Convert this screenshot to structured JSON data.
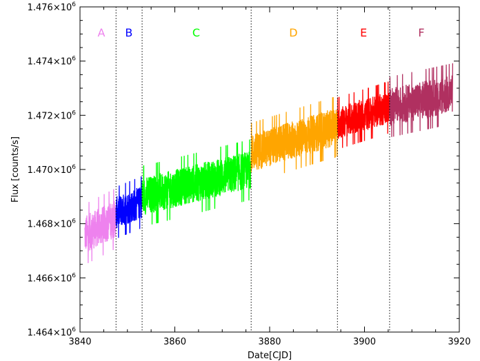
{
  "chart_data": {
    "type": "line",
    "title": "",
    "xlabel": "Date[CJD]",
    "ylabel": "Flux [counts/s]",
    "xlim": [
      3840,
      3920
    ],
    "ylim": [
      1464000,
      1476000
    ],
    "x_ticks": [
      3840,
      3860,
      3880,
      3900,
      3920
    ],
    "x_tick_labels": [
      "3840",
      "3860",
      "3880",
      "3900",
      "3920"
    ],
    "y_ticks": [
      1464000,
      1466000,
      1468000,
      1470000,
      1472000,
      1474000,
      1476000
    ],
    "y_tick_labels": [
      {
        "mantissa": "1.464×10",
        "exp": "6"
      },
      {
        "mantissa": "1.466×10",
        "exp": "6"
      },
      {
        "mantissa": "1.468×10",
        "exp": "6"
      },
      {
        "mantissa": "1.470×10",
        "exp": "6"
      },
      {
        "mantissa": "1.472×10",
        "exp": "6"
      },
      {
        "mantissa": "1.474×10",
        "exp": "6"
      },
      {
        "mantissa": "1.476×10",
        "exp": "6"
      }
    ],
    "grid": false,
    "dividers": [
      3847.6,
      3853.1,
      3876.1,
      3894.3,
      3905.3
    ],
    "series": [
      {
        "name": "A",
        "color": "#ee82ee",
        "x_start": 3841.0,
        "x_end": 3847.6,
        "mean_start": 1467600,
        "mean_end": 1468200,
        "amplitude": 700,
        "band_min": 1466000,
        "band_max": 1469300
      },
      {
        "name": "B",
        "color": "#0000ff",
        "x_start": 3847.6,
        "x_end": 3853.1,
        "mean_start": 1468400,
        "mean_end": 1468800,
        "amplitude": 600,
        "band_min": 1467400,
        "band_max": 1470200
      },
      {
        "name": "C",
        "color": "#00ff00",
        "x_start": 3853.1,
        "x_end": 3876.1,
        "mean_start": 1469000,
        "mean_end": 1470000,
        "amplitude": 700,
        "band_min": 1467600,
        "band_max": 1471700
      },
      {
        "name": "D",
        "color": "#ffa500",
        "x_start": 3876.1,
        "x_end": 3894.3,
        "mean_start": 1470600,
        "mean_end": 1471600,
        "amplitude": 700,
        "band_min": 1469200,
        "band_max": 1473300
      },
      {
        "name": "E",
        "color": "#ff0000",
        "x_start": 3894.3,
        "x_end": 3905.3,
        "mean_start": 1471700,
        "mean_end": 1472300,
        "amplitude": 600,
        "band_min": 1470200,
        "band_max": 1473400
      },
      {
        "name": "F",
        "color": "#b03060",
        "x_start": 3905.3,
        "x_end": 3918.6,
        "mean_start": 1472300,
        "mean_end": 1472800,
        "amplitude": 700,
        "band_min": 1470600,
        "band_max": 1474600
      }
    ],
    "segment_labels": [
      {
        "text": "A",
        "x": 3844.5,
        "color": "#ee82ee"
      },
      {
        "text": "B",
        "x": 3850.3,
        "color": "#0000ff"
      },
      {
        "text": "C",
        "x": 3864.5,
        "color": "#00ff00"
      },
      {
        "text": "D",
        "x": 3885.0,
        "color": "#ffa500"
      },
      {
        "text": "E",
        "x": 3899.8,
        "color": "#ff0000"
      },
      {
        "text": "F",
        "x": 3912.0,
        "color": "#b03060"
      }
    ]
  }
}
